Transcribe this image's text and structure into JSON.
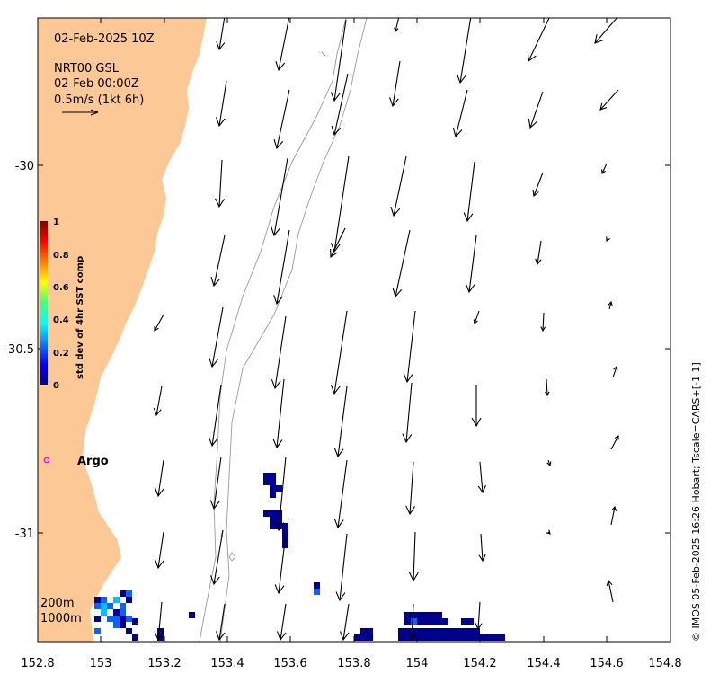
{
  "map": {
    "title": "02-Feb-2025 10Z",
    "product": "NRT00 GSL",
    "current_time": "02-Feb 00:00Z",
    "scale_label": "0.5m/s (1kt 6h)",
    "credit": "© IMOS 05-Feb-2025 16:26 Hobart; Tscale=CARS+[-1 1]",
    "argo_label": "Argo",
    "isobath_labels": [
      "200m",
      "1000m"
    ],
    "colors": {
      "land": "#fcc996",
      "isobath": "#9a9a9a",
      "argo": "#ff00ff",
      "arrow": "#000000"
    }
  },
  "axes": {
    "x_ticks": [
      "152.8",
      "153",
      "153.2",
      "153.4",
      "153.6",
      "153.8",
      "154",
      "154.2",
      "154.4",
      "154.6",
      "154.8"
    ],
    "y_ticks": [
      "-30",
      "-30.5",
      "-31"
    ],
    "x_range": [
      152.8,
      154.8
    ],
    "y_range": [
      -31.3,
      -29.6
    ]
  },
  "colorbar": {
    "title": "std dev of 4hr SST comp",
    "ticks": [
      "1",
      "0.8",
      "0.6",
      "0.4",
      "0.2",
      "0"
    ]
  }
}
